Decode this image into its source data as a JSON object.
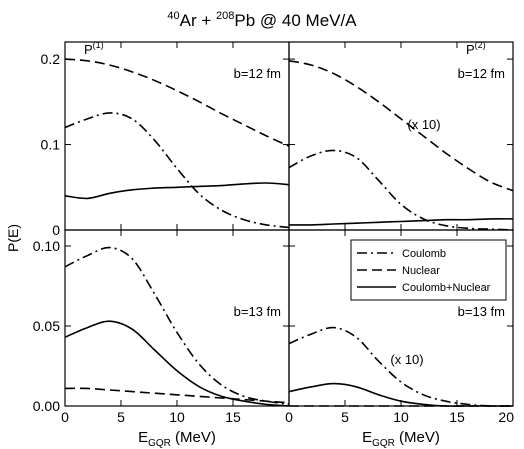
{
  "figure": {
    "title": {
      "a_sup": "40",
      "a_txt": "Ar + ",
      "b_sup": "208",
      "b_txt": "Pb @ 40 MeV/A"
    },
    "ylabel": "P(E)",
    "xlabel": {
      "main": "E",
      "sub": "GQR",
      "unit": " (MeV)"
    },
    "col_labels": [
      {
        "main": "P",
        "sup": "(1)"
      },
      {
        "main": "P",
        "sup": "(2)"
      }
    ],
    "legend": [
      "Coulomb",
      "Nuclear",
      "Coulomb+Nuclear"
    ]
  },
  "chart_data": [
    {
      "type": "line",
      "panel": "top-left",
      "annotation": "b=12 fm",
      "xlim": [
        0,
        20
      ],
      "ylim": [
        0,
        0.22
      ],
      "xticks": [
        0,
        5,
        10,
        15,
        20
      ],
      "xticklabels": [
        "",
        "",
        "",
        "",
        ""
      ],
      "yticks": [
        0,
        0.1,
        0.2
      ],
      "yticklabels": [
        "0",
        "0.1",
        "0.2"
      ],
      "x": [
        0,
        2,
        4,
        6,
        8,
        10,
        12,
        14,
        16,
        18,
        20
      ],
      "series": [
        {
          "name": "Coulomb",
          "style": "dashdot",
          "values": [
            0.12,
            0.13,
            0.137,
            0.13,
            0.105,
            0.072,
            0.042,
            0.023,
            0.012,
            0.006,
            0.003
          ]
        },
        {
          "name": "Nuclear",
          "style": "dashed",
          "values": [
            0.2,
            0.198,
            0.193,
            0.185,
            0.175,
            0.163,
            0.15,
            0.136,
            0.123,
            0.11,
            0.098
          ]
        },
        {
          "name": "Coulomb+Nuclear",
          "style": "solid",
          "values": [
            0.04,
            0.037,
            0.043,
            0.047,
            0.049,
            0.05,
            0.051,
            0.052,
            0.054,
            0.055,
            0.053
          ]
        }
      ]
    },
    {
      "type": "line",
      "panel": "top-right",
      "annotation": "b=12 fm",
      "note": "(x 10)",
      "xlim": [
        0,
        20
      ],
      "ylim": [
        0,
        0.22
      ],
      "xticks": [
        0,
        5,
        10,
        15,
        20
      ],
      "xticklabels": [
        "",
        "",
        "",
        "",
        ""
      ],
      "yticks": [
        0,
        0.1,
        0.2
      ],
      "yticklabels": [
        "",
        "",
        ""
      ],
      "x": [
        0,
        2,
        4,
        6,
        8,
        10,
        12,
        14,
        16,
        18,
        20
      ],
      "series": [
        {
          "name": "Coulomb",
          "style": "dashdot",
          "values": [
            0.073,
            0.087,
            0.093,
            0.085,
            0.058,
            0.03,
            0.013,
            0.005,
            0.002,
            0.001,
            0.0
          ]
        },
        {
          "name": "Nuclear",
          "style": "dashed",
          "values": [
            0.198,
            0.193,
            0.183,
            0.168,
            0.15,
            0.13,
            0.11,
            0.09,
            0.072,
            0.056,
            0.046
          ]
        },
        {
          "name": "Coulomb+Nuclear",
          "style": "solid",
          "values": [
            0.006,
            0.006,
            0.007,
            0.008,
            0.009,
            0.01,
            0.011,
            0.012,
            0.012,
            0.013,
            0.013
          ]
        }
      ]
    },
    {
      "type": "line",
      "panel": "bottom-left",
      "annotation": "b=13 fm",
      "xlim": [
        0,
        20
      ],
      "ylim": [
        0,
        0.11
      ],
      "xticks": [
        0,
        5,
        10,
        15,
        20
      ],
      "xticklabels": [
        "0",
        "5",
        "10",
        "15",
        ""
      ],
      "yticks": [
        0,
        0.05,
        0.1
      ],
      "yticklabels": [
        "0.00",
        "0.05",
        "0.10"
      ],
      "xlabel": "EGQR (MeV)",
      "x": [
        0,
        2,
        4,
        6,
        8,
        10,
        12,
        14,
        16,
        18,
        20
      ],
      "series": [
        {
          "name": "Coulomb",
          "style": "dashdot",
          "values": [
            0.087,
            0.094,
            0.099,
            0.092,
            0.07,
            0.046,
            0.026,
            0.013,
            0.006,
            0.003,
            0.001
          ]
        },
        {
          "name": "Nuclear",
          "style": "dashed",
          "values": [
            0.011,
            0.011,
            0.01,
            0.009,
            0.008,
            0.007,
            0.006,
            0.005,
            0.004,
            0.003,
            0.002
          ]
        },
        {
          "name": "Coulomb+Nuclear",
          "style": "solid",
          "values": [
            0.043,
            0.049,
            0.053,
            0.048,
            0.035,
            0.022,
            0.012,
            0.006,
            0.003,
            0.001,
            0.0
          ]
        }
      ]
    },
    {
      "type": "line",
      "panel": "bottom-right",
      "annotation": "b=13 fm",
      "note": "(x 10)",
      "legend": "top-right",
      "xlim": [
        0,
        20
      ],
      "ylim": [
        0,
        0.11
      ],
      "xticks": [
        0,
        5,
        10,
        15,
        20
      ],
      "xticklabels": [
        "0",
        "5",
        "10",
        "15",
        "20"
      ],
      "yticks": [
        0,
        0.05,
        0.1
      ],
      "yticklabels": [
        "",
        "",
        ""
      ],
      "xlabel": "EGQR (MeV)",
      "x": [
        0,
        2,
        4,
        6,
        8,
        10,
        12,
        14,
        16,
        18,
        20
      ],
      "series": [
        {
          "name": "Coulomb",
          "style": "dashdot",
          "values": [
            0.039,
            0.045,
            0.049,
            0.043,
            0.028,
            0.015,
            0.007,
            0.003,
            0.001,
            0.0,
            0.0
          ]
        },
        {
          "name": "Nuclear",
          "style": "dashed",
          "values": [
            0.0,
            0.0,
            0.0,
            0.0,
            0.0,
            0.0,
            0.0,
            0.0,
            0.0,
            0.0,
            0.0
          ]
        },
        {
          "name": "Coulomb+Nuclear",
          "style": "solid",
          "values": [
            0.009,
            0.012,
            0.014,
            0.012,
            0.007,
            0.003,
            0.001,
            0.0,
            0.0,
            0.0,
            0.0
          ]
        }
      ]
    }
  ]
}
